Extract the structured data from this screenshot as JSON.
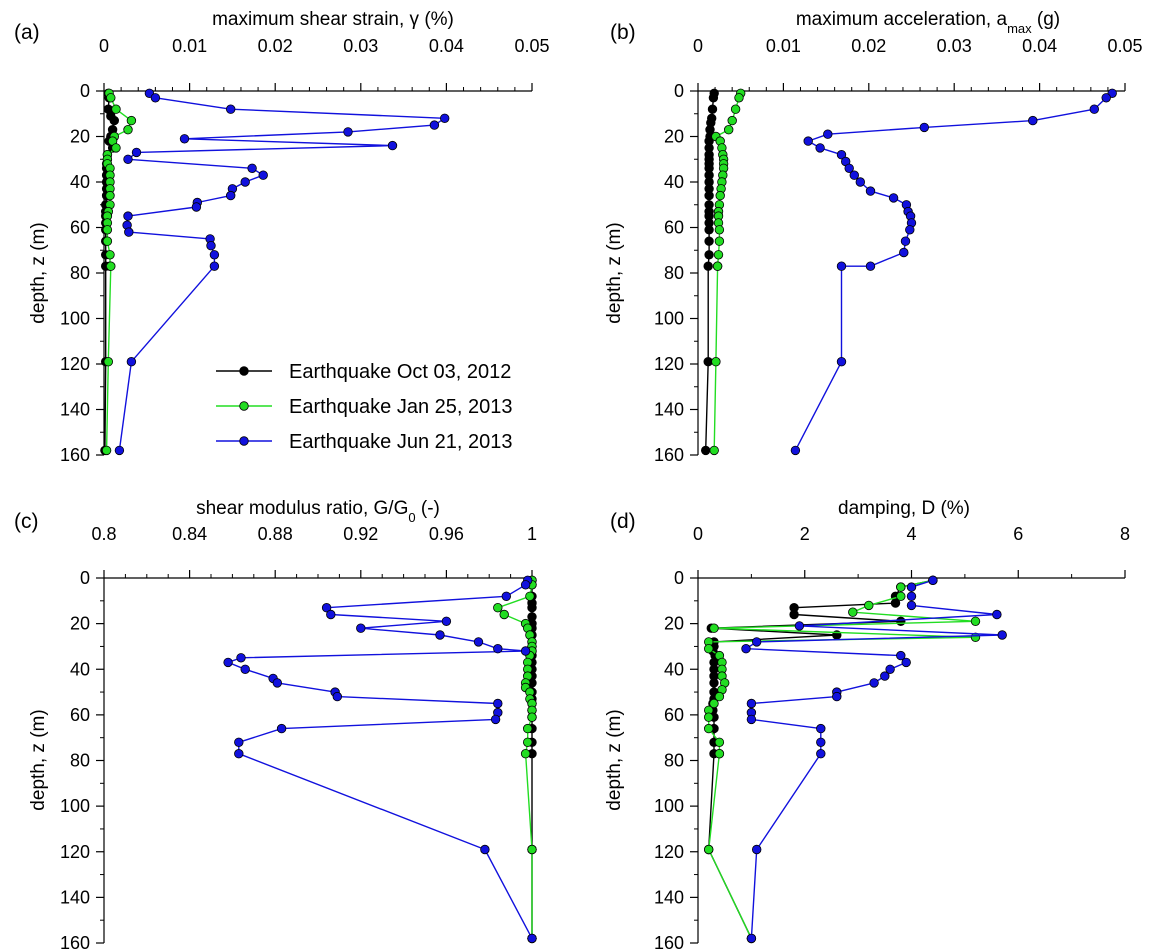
{
  "legend": {
    "entries": [
      {
        "label": "Earthquake Oct 03, 2012",
        "color": "#000000"
      },
      {
        "label": "Earthquake Jan 25, 2013",
        "color": "#22dd22"
      },
      {
        "label": "Earthquake Jun 21, 2013",
        "color": "#1111dd"
      }
    ]
  },
  "chart_data": [
    {
      "id": "a",
      "panel_label": "(a)",
      "type": "line",
      "title": "maximum shear strain, γ (%)",
      "xlabel": "maximum shear strain, γ (%)",
      "ylabel": "depth, z (m)",
      "xlim": [
        0,
        0.05
      ],
      "ylim": [
        0,
        160
      ],
      "x_axis_position": "top",
      "y_inverted": true,
      "xticks": [
        0,
        0.01,
        0.02,
        0.03,
        0.04,
        0.05
      ],
      "xtick_labels": [
        "0",
        "0.01",
        "0.02",
        "0.03",
        "0.04",
        "0.05"
      ],
      "yticks": [
        0,
        20,
        40,
        60,
        80,
        100,
        120,
        140,
        160
      ],
      "ytick_labels": [
        "0",
        "20",
        "40",
        "60",
        "80",
        "100",
        "120",
        "140",
        "160"
      ],
      "grid": false,
      "series": [
        {
          "name": "Earthquake Oct 03, 2012",
          "color": "#000000",
          "x": [
            0.0005,
            0.0006,
            0.0005,
            0.0008,
            0.0012,
            0.001,
            0.0008,
            0.0006,
            0.001,
            0.0004,
            0.0004,
            0.0003,
            0.0003,
            0.0003,
            0.0003,
            0.0003,
            0.0003,
            0.0002,
            0.0002,
            0.0002,
            0.0002,
            0.0002,
            0.0002,
            0.0002,
            0.0002,
            0.0002,
            0.0001
          ],
          "y": [
            1,
            3,
            8,
            11,
            13,
            17,
            20,
            22,
            25,
            28,
            30,
            32,
            34,
            37,
            40,
            43,
            46,
            50,
            53,
            55,
            58,
            61,
            66,
            72,
            77,
            119,
            158
          ]
        },
        {
          "name": "Earthquake Jan 25, 2013",
          "color": "#22dd22",
          "x": [
            0.0006,
            0.0008,
            0.0014,
            0.0032,
            0.0028,
            0.0012,
            0.001,
            0.0014,
            0.0004,
            0.0004,
            0.0004,
            0.0007,
            0.0007,
            0.0007,
            0.0007,
            0.0007,
            0.0007,
            0.0005,
            0.0004,
            0.0004,
            0.0004,
            0.0004,
            0.0007,
            0.0007,
            0.0008,
            0.0005,
            0.0003
          ],
          "y": [
            1,
            3,
            8,
            13,
            17,
            20,
            22,
            25,
            28,
            30,
            32,
            34,
            37,
            40,
            43,
            46,
            50,
            53,
            55,
            58,
            61,
            66,
            72,
            77,
            77,
            119,
            158
          ]
        },
        {
          "name": "Earthquake Jun 21, 2013",
          "color": "#1111dd",
          "x": [
            0.0053,
            0.006,
            0.0148,
            0.0398,
            0.0386,
            0.0285,
            0.0094,
            0.0337,
            0.0038,
            0.0028,
            0.0173,
            0.0186,
            0.0165,
            0.015,
            0.0148,
            0.0109,
            0.0108,
            0.0028,
            0.0027,
            0.0029,
            0.0124,
            0.0125,
            0.0129,
            0.0129,
            0.0032,
            0.0018
          ],
          "y": [
            1,
            3,
            8,
            12,
            15,
            18,
            21,
            24,
            27,
            30,
            34,
            37,
            40,
            43,
            46,
            49,
            51,
            55,
            59,
            62,
            65,
            68,
            72,
            77,
            119,
            158
          ]
        }
      ]
    },
    {
      "id": "b",
      "panel_label": "(b)",
      "type": "line",
      "title": "maximum acceleration, amax (g)",
      "xlabel": "maximum acceleration, amax (g)",
      "ylabel": "depth, z (m)",
      "xlim": [
        0,
        0.05
      ],
      "ylim": [
        0,
        160
      ],
      "x_axis_position": "top",
      "y_inverted": true,
      "xticks": [
        0,
        0.01,
        0.02,
        0.03,
        0.04,
        0.05
      ],
      "xtick_labels": [
        "0",
        "0.01",
        "0.02",
        "0.03",
        "0.04",
        "0.05"
      ],
      "yticks": [
        0,
        20,
        40,
        60,
        80,
        100,
        120,
        140,
        160
      ],
      "ytick_labels": [
        "0",
        "20",
        "40",
        "60",
        "80",
        "100",
        "120",
        "140",
        "160"
      ],
      "grid": false,
      "series": [
        {
          "name": "Earthquake Oct 03, 2012",
          "color": "#000000",
          "x": [
            0.0019,
            0.0018,
            0.0017,
            0.0016,
            0.0015,
            0.0014,
            0.0014,
            0.0013,
            0.0013,
            0.0013,
            0.0013,
            0.0013,
            0.0013,
            0.0013,
            0.0013,
            0.0013,
            0.0013,
            0.0013,
            0.0013,
            0.0013,
            0.0013,
            0.0013,
            0.0013,
            0.0013,
            0.0012,
            0.0012,
            0.0009
          ],
          "y": [
            1,
            3,
            8,
            12,
            14,
            17,
            20,
            22,
            25,
            28,
            30,
            32,
            34,
            37,
            40,
            43,
            46,
            50,
            53,
            55,
            58,
            61,
            66,
            72,
            77,
            119,
            158
          ]
        },
        {
          "name": "Earthquake Jan 25, 2013",
          "color": "#22dd22",
          "x": [
            0.005,
            0.0048,
            0.0044,
            0.004,
            0.0036,
            0.0021,
            0.0026,
            0.0028,
            0.0029,
            0.003,
            0.003,
            0.003,
            0.0029,
            0.0028,
            0.0027,
            0.0026,
            0.0025,
            0.0024,
            0.0024,
            0.0024,
            0.0025,
            0.0025,
            0.0024,
            0.0023,
            0.0023,
            0.0021,
            0.0019
          ],
          "y": [
            1,
            3,
            8,
            13,
            17,
            20,
            22,
            25,
            28,
            30,
            32,
            34,
            37,
            40,
            43,
            46,
            50,
            53,
            55,
            58,
            61,
            66,
            72,
            77,
            77,
            119,
            158
          ]
        },
        {
          "name": "Earthquake Jun 21, 2013",
          "color": "#1111dd",
          "x": [
            0.0485,
            0.0478,
            0.0464,
            0.0392,
            0.0265,
            0.0152,
            0.0129,
            0.0143,
            0.0168,
            0.0173,
            0.0177,
            0.0183,
            0.019,
            0.0202,
            0.0229,
            0.0244,
            0.0246,
            0.0249,
            0.025,
            0.0248,
            0.0243,
            0.0241,
            0.0202,
            0.0168,
            0.0168,
            0.0114
          ],
          "y": [
            1,
            3,
            8,
            13,
            16,
            19,
            22,
            25,
            28,
            31,
            34,
            37,
            40,
            44,
            47,
            50,
            53,
            55,
            58,
            61,
            66,
            71,
            77,
            77,
            119,
            158
          ]
        }
      ]
    },
    {
      "id": "c",
      "panel_label": "(c)",
      "type": "line",
      "title": "shear modulus ratio, G/G0 (-)",
      "xlabel": "shear modulus ratio, G/G0 (-)",
      "ylabel": "depth, z (m)",
      "xlim": [
        0.8,
        1.0
      ],
      "ylim": [
        0,
        160
      ],
      "x_axis_position": "top",
      "y_inverted": true,
      "xticks": [
        0.8,
        0.84,
        0.88,
        0.92,
        0.96,
        1.0
      ],
      "xtick_labels": [
        "0.8",
        "0.84",
        "0.88",
        "0.92",
        "0.96",
        "1"
      ],
      "yticks": [
        0,
        20,
        40,
        60,
        80,
        100,
        120,
        140,
        160
      ],
      "ytick_labels": [
        "0",
        "20",
        "40",
        "60",
        "80",
        "100",
        "120",
        "140",
        "160"
      ],
      "grid": false,
      "series": [
        {
          "name": "Earthquake Oct 03, 2012",
          "color": "#000000",
          "x": [
            1.0,
            1.0,
            1.0,
            1.0,
            1.0,
            1.0,
            1.0,
            1.0,
            1.0,
            1.0,
            1.0,
            1.0,
            1.0,
            1.0,
            1.0,
            1.0,
            1.0,
            1.0,
            1.0,
            1.0,
            1.0,
            1.0,
            1.0,
            1.0,
            1.0,
            1.0,
            1.0
          ],
          "y": [
            1,
            3,
            8,
            11,
            13,
            17,
            20,
            22,
            25,
            28,
            30,
            32,
            34,
            37,
            40,
            43,
            46,
            50,
            53,
            55,
            58,
            61,
            66,
            72,
            77,
            119,
            158
          ]
        },
        {
          "name": "Earthquake Jan 25, 2013",
          "color": "#22dd22",
          "x": [
            1.0,
            1.0,
            0.999,
            0.984,
            0.987,
            0.997,
            0.998,
            0.999,
            1.0,
            1.0,
            1.0,
            0.999,
            0.998,
            0.998,
            0.998,
            0.997,
            0.997,
            0.999,
            0.999,
            1.0,
            1.0,
            1.0,
            0.998,
            0.998,
            0.997,
            1.0,
            1.0
          ],
          "y": [
            1,
            3,
            8,
            13,
            16,
            20,
            22,
            25,
            28,
            30,
            32,
            34,
            37,
            40,
            43,
            46,
            48,
            50,
            53,
            55,
            58,
            61,
            66,
            72,
            77,
            119,
            158
          ]
        },
        {
          "name": "Earthquake Jun 21, 2013",
          "color": "#1111dd",
          "x": [
            0.998,
            0.997,
            0.988,
            0.904,
            0.906,
            0.96,
            0.92,
            0.957,
            0.975,
            0.984,
            0.997,
            0.864,
            0.858,
            0.866,
            0.879,
            0.881,
            0.908,
            0.909,
            0.984,
            0.984,
            0.983,
            0.883,
            0.863,
            0.863,
            0.978,
            1.0
          ],
          "y": [
            1,
            3,
            8,
            13,
            16,
            19,
            22,
            25,
            28,
            31,
            32,
            35,
            37,
            40,
            44,
            46,
            50,
            52,
            55,
            59,
            62,
            66,
            72,
            77,
            119,
            158
          ]
        }
      ]
    },
    {
      "id": "d",
      "panel_label": "(d)",
      "type": "line",
      "title": "damping, D (%)",
      "xlabel": "damping, D (%)",
      "ylabel": "depth, z (m)",
      "xlim": [
        0,
        8
      ],
      "ylim": [
        0,
        160
      ],
      "x_axis_position": "top",
      "y_inverted": true,
      "xticks": [
        0,
        2,
        4,
        6,
        8
      ],
      "xtick_labels": [
        "0",
        "2",
        "4",
        "6",
        "8"
      ],
      "yticks": [
        0,
        20,
        40,
        60,
        80,
        100,
        120,
        140,
        160
      ],
      "ytick_labels": [
        "0",
        "20",
        "40",
        "60",
        "80",
        "100",
        "120",
        "140",
        "160"
      ],
      "grid": false,
      "series": [
        {
          "name": "Earthquake Oct 03, 2012",
          "color": "#000000",
          "x": [
            4.4,
            3.8,
            3.7,
            3.7,
            1.8,
            1.8,
            3.8,
            0.25,
            2.6,
            0.3,
            0.3,
            0.28,
            0.32,
            0.3,
            0.3,
            0.3,
            0.3,
            0.3,
            0.3,
            0.28,
            0.28,
            0.3,
            0.3,
            0.3,
            0.3,
            0.2,
            1.0
          ],
          "y": [
            1,
            4,
            8,
            11,
            13,
            16,
            19,
            22,
            25,
            28,
            30,
            32,
            34,
            37,
            40,
            43,
            46,
            50,
            53,
            55,
            58,
            61,
            66,
            72,
            77,
            119,
            158
          ]
        },
        {
          "name": "Earthquake Jan 25, 2013",
          "color": "#22dd22",
          "x": [
            4.4,
            3.8,
            3.8,
            3.2,
            2.9,
            5.2,
            0.3,
            5.2,
            0.2,
            0.2,
            0.4,
            0.45,
            0.45,
            0.45,
            0.5,
            0.45,
            0.4,
            0.3,
            0.2,
            0.2,
            0.2,
            0.4,
            0.4,
            0.4,
            0.2,
            1.0
          ],
          "y": [
            1,
            4,
            8,
            12,
            15,
            19,
            22,
            26,
            28,
            31,
            34,
            37,
            40,
            43,
            46,
            49,
            52,
            55,
            58,
            61,
            66,
            72,
            77,
            77,
            119,
            158
          ]
        },
        {
          "name": "Earthquake Jun 21, 2013",
          "color": "#1111dd",
          "x": [
            4.4,
            4.0,
            4.0,
            4.0,
            5.6,
            1.9,
            5.7,
            1.1,
            0.9,
            3.8,
            3.9,
            3.6,
            3.5,
            3.3,
            2.6,
            2.6,
            1.0,
            1.0,
            1.0,
            2.3,
            2.3,
            2.3,
            1.1,
            1.0
          ],
          "y": [
            1,
            4,
            8,
            12,
            16,
            21,
            25,
            28,
            31,
            34,
            37,
            40,
            43,
            46,
            50,
            52,
            55,
            59,
            62,
            66,
            72,
            77,
            119,
            158
          ]
        }
      ]
    }
  ]
}
